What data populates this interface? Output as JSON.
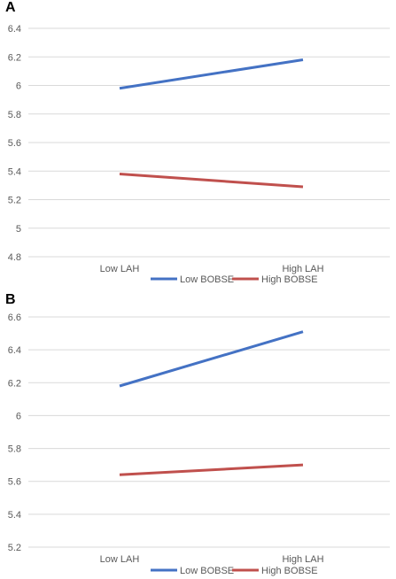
{
  "chart_data": [
    {
      "panel_label": "A",
      "type": "line",
      "categories": [
        "Low LAH",
        "High LAH"
      ],
      "series": [
        {
          "name": "Low BOBSE",
          "values": [
            5.98,
            6.18
          ],
          "color": "#4472c4"
        },
        {
          "name": "High BOBSE",
          "values": [
            5.38,
            5.29
          ],
          "color": "#c0504d"
        }
      ],
      "ylim": [
        4.8,
        6.4
      ],
      "yticks": [
        "4.8",
        "5",
        "5.2",
        "5.4",
        "5.6",
        "5.8",
        "6",
        "6.2",
        "6.4"
      ],
      "grid": true,
      "legend": "bottom"
    },
    {
      "panel_label": "B",
      "type": "line",
      "categories": [
        "Low LAH",
        "High LAH"
      ],
      "series": [
        {
          "name": "Low BOBSE",
          "values": [
            6.18,
            6.51
          ],
          "color": "#4472c4"
        },
        {
          "name": "High BOBSE",
          "values": [
            5.64,
            5.7
          ],
          "color": "#c0504d"
        }
      ],
      "ylim": [
        5.2,
        6.6
      ],
      "yticks": [
        "5.2",
        "5.4",
        "5.6",
        "5.8",
        "6",
        "6.2",
        "6.4",
        "6.6"
      ],
      "grid": true,
      "legend": "bottom"
    }
  ]
}
